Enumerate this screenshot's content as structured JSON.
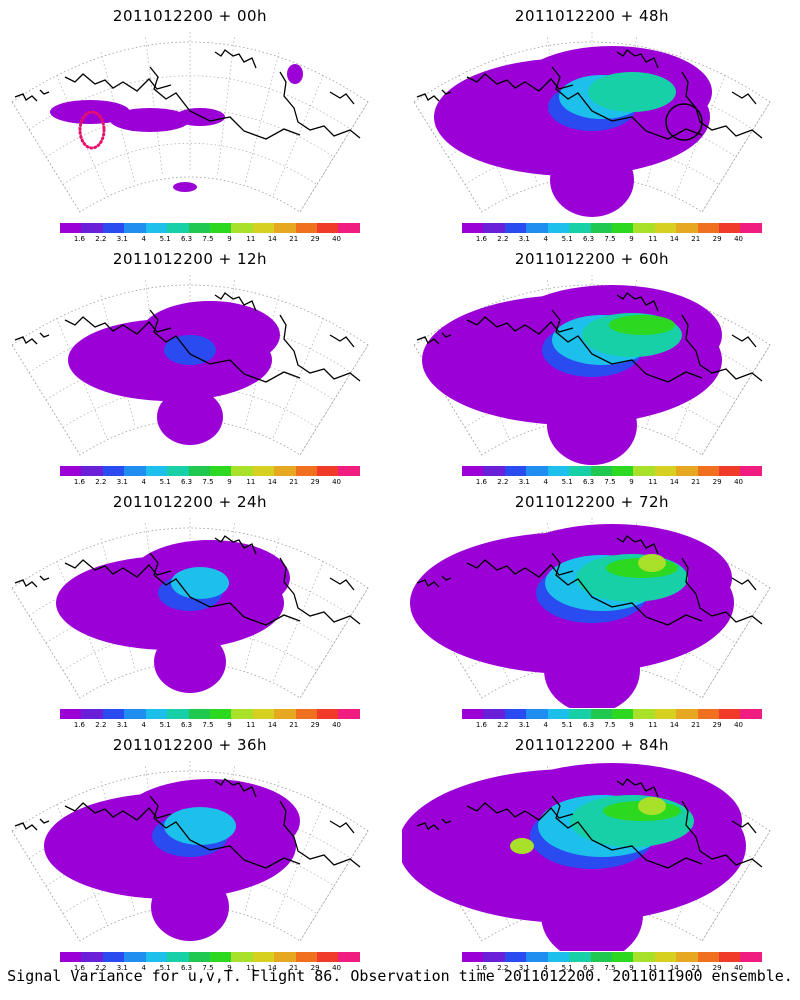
{
  "caption": "Signal Variance for u,v,T. Flight 86. Observation time 2011012200. 2011011900 ensemble.",
  "colorbar": {
    "labels": [
      "1.6",
      "2.2",
      "3.1",
      "4",
      "5.1",
      "6.3",
      "7.5",
      "9",
      "11",
      "14",
      "21",
      "29",
      "40"
    ],
    "colors": [
      "#9b00d6",
      "#6a1fd8",
      "#2a4bf0",
      "#1f8ef0",
      "#1cc0ea",
      "#18d0a8",
      "#20c850",
      "#2cd820",
      "#a8e02a",
      "#d6d020",
      "#e6a820",
      "#f07020",
      "#f03a2a",
      "#f01c80"
    ]
  },
  "panels": [
    {
      "title": "2011012200 + 00h",
      "level": 0
    },
    {
      "title": "2011012200 + 48h",
      "level": 4
    },
    {
      "title": "2011012200 + 12h",
      "level": 1
    },
    {
      "title": "2011012200 + 60h",
      "level": 5
    },
    {
      "title": "2011012200 + 24h",
      "level": 2
    },
    {
      "title": "2011012200 + 72h",
      "level": 6
    },
    {
      "title": "2011012200 + 36h",
      "level": 3
    },
    {
      "title": "2011012200 + 84h",
      "level": 7
    }
  ],
  "markers": {
    "flight_track_color": "#e8106e",
    "observation_circle_color": "#000000"
  }
}
